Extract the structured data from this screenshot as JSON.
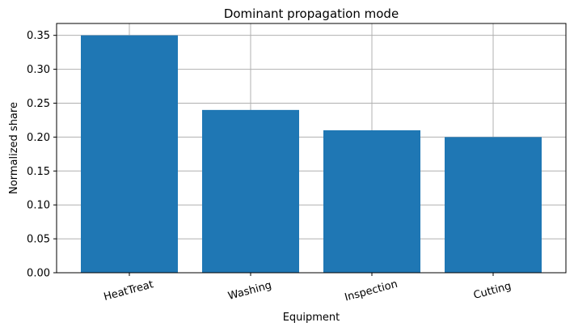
{
  "chart_data": {
    "type": "bar",
    "title": "Dominant propagation mode",
    "xlabel": "Equipment",
    "ylabel": "Normalized share",
    "categories": [
      "HeatTreat",
      "Washing",
      "Inspection",
      "Cutting"
    ],
    "values": [
      0.35,
      0.24,
      0.21,
      0.2
    ],
    "ylim": [
      0,
      0.3675
    ],
    "yticks": [
      "0.00",
      "0.05",
      "0.10",
      "0.15",
      "0.20",
      "0.25",
      "0.30",
      "0.35"
    ],
    "grid": true,
    "bar_color": "#1f77b4",
    "grid_color": "#b0b0b0"
  }
}
